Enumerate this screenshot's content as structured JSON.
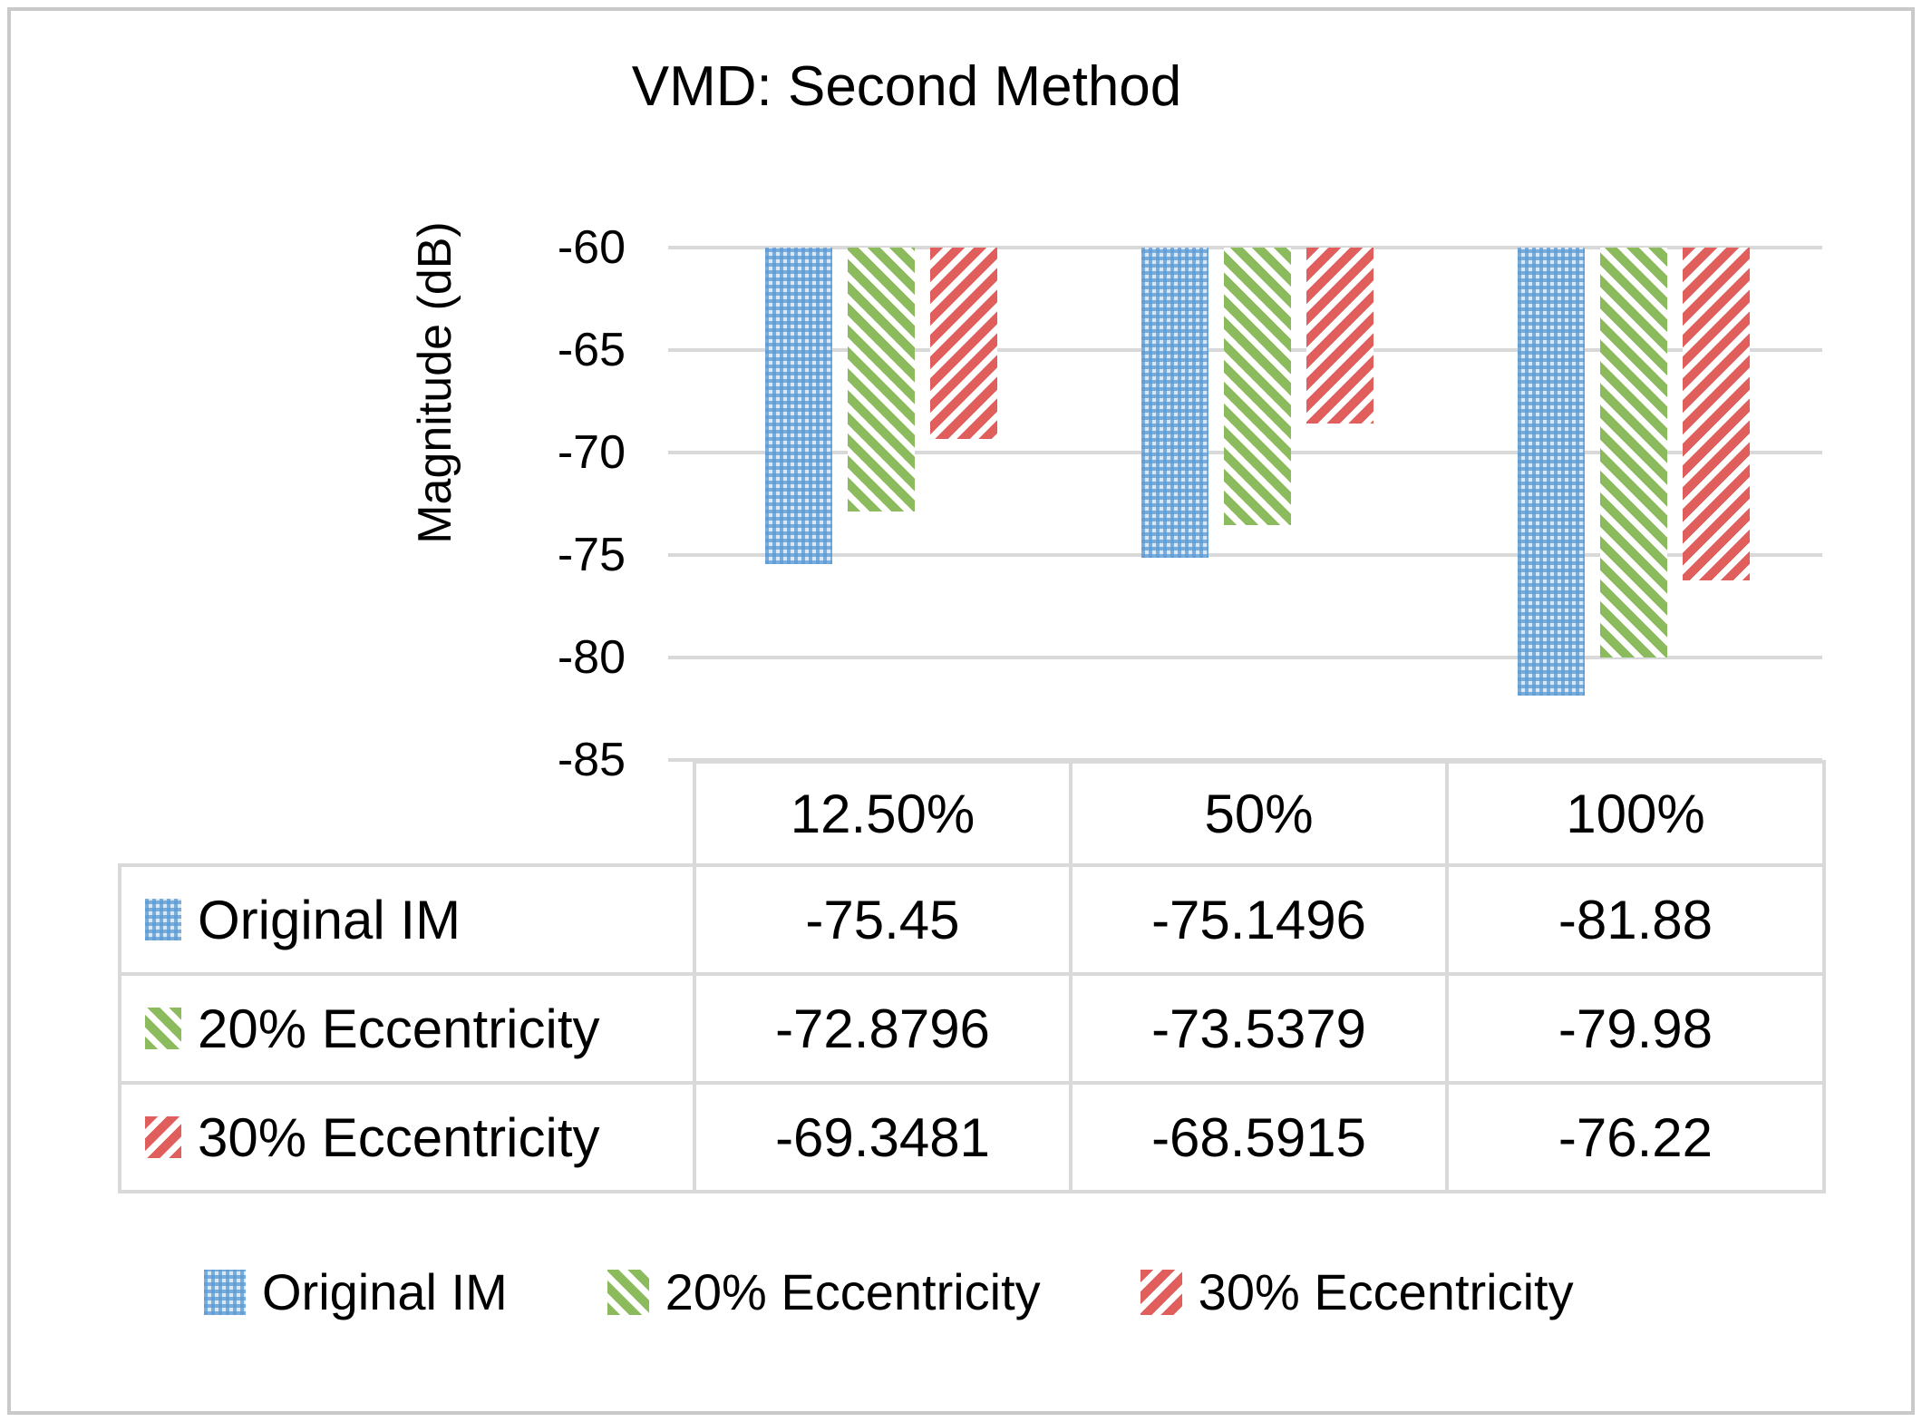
{
  "title": "VMD: Second Method",
  "y_axis": {
    "label": "Magnitude (dB)",
    "ticks": [
      "-60",
      "-65",
      "-70",
      "-75",
      "-80",
      "-85"
    ]
  },
  "chart_data": {
    "type": "bar",
    "title": "VMD: Second Method",
    "categories": [
      "12.50%",
      "50%",
      "100%"
    ],
    "series": [
      {
        "name": "Original IM",
        "values": [
          -75.45,
          -75.1496,
          -81.88
        ],
        "color": "#5B9BD5",
        "pattern": "blue-checker"
      },
      {
        "name": "20% Eccentricity",
        "values": [
          -72.8796,
          -73.5379,
          -79.98
        ],
        "color": "#8CBB5E",
        "pattern": "green-diagonal-down"
      },
      {
        "name": "30% Eccentricity",
        "values": [
          -69.3481,
          -68.5915,
          -76.22
        ],
        "color": "#E05F5D",
        "pattern": "red-diagonal-up"
      }
    ],
    "xlabel": "",
    "ylabel": "Magnitude (dB)",
    "ylim": [
      -85,
      -60
    ],
    "grid": true,
    "legend_position": "bottom",
    "data_table_attached": true
  },
  "data_table": {
    "column_headers": [
      "12.50%",
      "50%",
      "100%"
    ],
    "rows": [
      {
        "label": "Original IM",
        "values": [
          "-75.45",
          "-75.1496",
          "-81.88"
        ]
      },
      {
        "label": "20% Eccentricity",
        "values": [
          "-72.8796",
          "-73.5379",
          "-79.98"
        ]
      },
      {
        "label": "30% Eccentricity",
        "values": [
          "-69.3481",
          "-68.5915",
          "-76.22"
        ]
      }
    ]
  },
  "legend": {
    "items": [
      "Original IM",
      "20% Eccentricity",
      "30% Eccentricity"
    ]
  },
  "colors": {
    "series_blue": "#5B9BD5",
    "series_green": "#8CBB5E",
    "series_red": "#E05F5D",
    "gridline": "#D9D9D9",
    "table_border": "#D9D9D9",
    "figure_border": "#C9C9C9",
    "background": "#FFFFFF"
  }
}
